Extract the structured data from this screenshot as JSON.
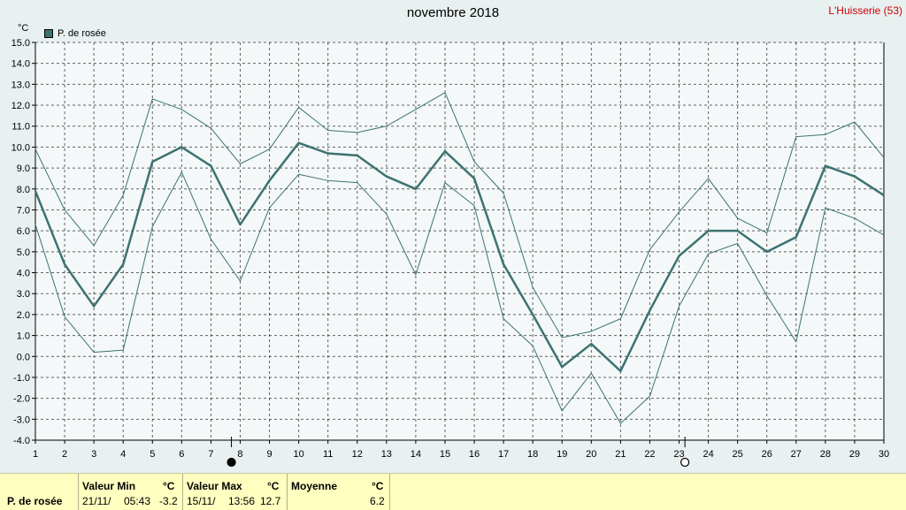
{
  "header": {
    "title": "novembre 2018",
    "station": "L'Huisserie (53)",
    "unit": "°C",
    "legend_label": "P. de rosée"
  },
  "colors": {
    "series": "#3d7272",
    "background": "#e8f0f0",
    "grid": "#000000",
    "stats_background": "#ffffc0",
    "station_text": "#cc0000"
  },
  "moon_phases": [
    {
      "day": 7.7,
      "phase": "new-moon"
    },
    {
      "day": 23.2,
      "phase": "full-moon"
    }
  ],
  "chart_data": {
    "type": "line",
    "title": "novembre 2018",
    "x": [
      1,
      2,
      3,
      4,
      5,
      6,
      7,
      8,
      9,
      10,
      11,
      12,
      13,
      14,
      15,
      16,
      17,
      18,
      19,
      20,
      21,
      22,
      23,
      24,
      25,
      26,
      27,
      28,
      29,
      30
    ],
    "xlim": [
      1,
      30
    ],
    "ylim": [
      -4,
      15
    ],
    "yticks": [
      "15.0",
      "14.0",
      "13.0",
      "12.0",
      "11.0",
      "10.0",
      "9.0",
      "8.0",
      "7.0",
      "6.0",
      "5.0",
      "4.0",
      "3.0",
      "2.0",
      "1.0",
      "0.0",
      "-1.0",
      "-2.0",
      "-3.0",
      "-4.0"
    ],
    "grid": true,
    "legend_position": "top-left",
    "series": [
      {
        "name": "P. de rosée",
        "role": "mean",
        "values": [
          7.9,
          4.4,
          2.4,
          4.4,
          9.3,
          10.0,
          9.1,
          6.3,
          8.4,
          10.2,
          9.7,
          9.6,
          8.6,
          8.0,
          9.8,
          8.5,
          4.4,
          2.0,
          -0.5,
          0.6,
          -0.7,
          2.2,
          4.8,
          6.0,
          6.0,
          5.0,
          5.7,
          9.1,
          8.6,
          7.7
        ]
      },
      {
        "role": "max",
        "values": [
          9.9,
          7.0,
          5.3,
          7.7,
          12.3,
          11.8,
          10.9,
          9.2,
          9.9,
          11.9,
          10.8,
          10.7,
          11.0,
          11.8,
          12.6,
          9.3,
          7.8,
          3.3,
          0.9,
          1.2,
          1.8,
          5.1,
          6.9,
          8.5,
          6.6,
          5.9,
          10.5,
          10.6,
          11.2,
          9.5
        ]
      },
      {
        "role": "min",
        "values": [
          6.3,
          1.9,
          0.2,
          0.3,
          6.2,
          8.8,
          5.6,
          3.6,
          7.1,
          8.7,
          8.4,
          8.3,
          6.8,
          3.9,
          8.3,
          7.2,
          1.8,
          0.5,
          -2.6,
          -0.8,
          -3.2,
          -1.9,
          2.4,
          4.9,
          5.4,
          2.9,
          0.7,
          7.1,
          6.6,
          5.8
        ]
      }
    ]
  },
  "stats": {
    "row_label": "P. de rosée",
    "min": {
      "header": "Valeur Min",
      "unit": "°C",
      "date": "21/11/",
      "time": "05:43",
      "value": "-3.2"
    },
    "max": {
      "header": "Valeur Max",
      "unit": "°C",
      "date": "15/11/",
      "time": "13:56",
      "value": "12.7"
    },
    "avg": {
      "header": "Moyenne",
      "unit": "°C",
      "value": "6.2"
    }
  }
}
